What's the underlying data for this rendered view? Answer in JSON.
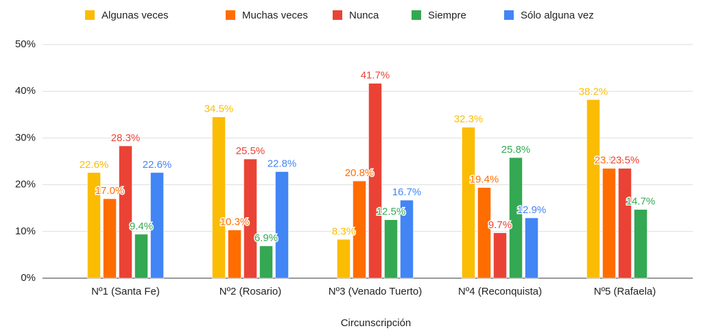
{
  "chart_data": {
    "type": "bar",
    "x_label": "Circunscripción",
    "categories": [
      "Nº1 (Santa Fe)",
      "Nº2 (Rosario)",
      "Nº3 (Venado Tuerto)",
      "Nº4 (Reconquista)",
      "Nº5 (Rafaela)"
    ],
    "series": [
      {
        "name": "Algunas veces",
        "color": "#fbbc04",
        "values": [
          22.6,
          34.5,
          8.3,
          32.3,
          38.2
        ],
        "value_labels": [
          "22.6%",
          "34.5%",
          "8.3%",
          "32.3%",
          "38.2%"
        ]
      },
      {
        "name": "Muchas veces",
        "color": "#ff6d01",
        "values": [
          17.0,
          10.3,
          20.8,
          19.4,
          23.5
        ],
        "value_labels": [
          "17.0%",
          "10.3%",
          "20.8%",
          "19.4%",
          "23.5%"
        ]
      },
      {
        "name": "Nunca",
        "color": "#ea4335",
        "values": [
          28.3,
          25.5,
          41.7,
          9.7,
          23.5
        ],
        "value_labels": [
          "28.3%",
          "25.5%",
          "41.7%",
          "9.7%",
          "23.5%"
        ]
      },
      {
        "name": "Siempre",
        "color": "#34a853",
        "values": [
          9.4,
          6.9,
          12.5,
          25.8,
          14.7
        ],
        "value_labels": [
          "9.4%",
          "6.9%",
          "12.5%",
          "25.8%",
          "14.7%"
        ]
      },
      {
        "name": "Sólo alguna vez",
        "color": "#4285f4",
        "values": [
          22.6,
          22.8,
          16.7,
          12.9,
          null
        ],
        "value_labels": [
          "22.6%",
          "22.8%",
          "16.7%",
          "12.9%",
          null
        ]
      }
    ],
    "ylim": [
      0,
      50
    ],
    "yticks": [
      {
        "value": 0,
        "label": "0%"
      },
      {
        "value": 10,
        "label": "10%"
      },
      {
        "value": 20,
        "label": "20%"
      },
      {
        "value": 30,
        "label": "30%"
      },
      {
        "value": 40,
        "label": "40%"
      },
      {
        "value": 50,
        "label": "50%"
      }
    ],
    "grid": true,
    "legend": "top"
  }
}
